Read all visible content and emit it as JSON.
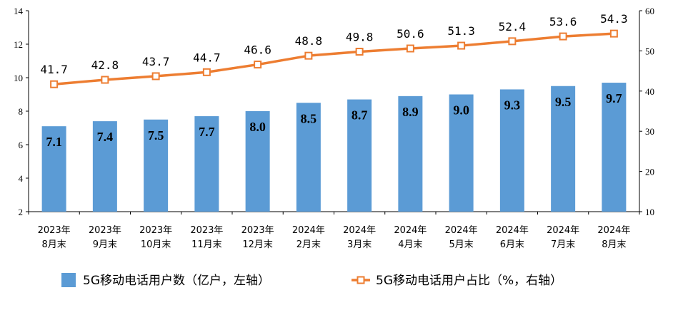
{
  "chart_data": {
    "type": "bar",
    "categories": [
      [
        "2023年",
        "8月末"
      ],
      [
        "2023年",
        "9月末"
      ],
      [
        "2023年",
        "10月末"
      ],
      [
        "2023年",
        "11月末"
      ],
      [
        "2023年",
        "12月末"
      ],
      [
        "2024年",
        "2月末"
      ],
      [
        "2024年",
        "3月末"
      ],
      [
        "2024年",
        "4月末"
      ],
      [
        "2024年",
        "5月末"
      ],
      [
        "2024年",
        "6月末"
      ],
      [
        "2024年",
        "7月末"
      ],
      [
        "2024年",
        "8月末"
      ]
    ],
    "series": [
      {
        "name": "5G移动电话用户数（亿户，左轴）",
        "type": "bar",
        "axis": "left",
        "color": "#5B9BD5",
        "values": [
          7.1,
          7.4,
          7.5,
          7.7,
          8.0,
          8.5,
          8.7,
          8.9,
          9.0,
          9.3,
          9.5,
          9.7
        ],
        "labels": [
          "7.1",
          "7.4",
          "7.5",
          "7.7",
          "8.0",
          "8.5",
          "8.7",
          "8.9",
          "9.0",
          "9.3",
          "9.5",
          "9.7"
        ]
      },
      {
        "name": "5G移动电话用户占比（%，右轴）",
        "type": "line",
        "axis": "right",
        "color": "#ED7D31",
        "values": [
          41.7,
          42.8,
          43.7,
          44.7,
          46.6,
          48.8,
          49.8,
          50.6,
          51.3,
          52.4,
          53.6,
          54.3
        ],
        "labels": [
          "41.7",
          "42.8",
          "43.7",
          "44.7",
          "46.6",
          "48.8",
          "49.8",
          "50.6",
          "51.3",
          "52.4",
          "53.6",
          "54.3"
        ]
      }
    ],
    "y_left": {
      "range": [
        2,
        14
      ],
      "ticks": [
        "2",
        "4",
        "6",
        "8",
        "10",
        "12",
        "14"
      ]
    },
    "y_right": {
      "range": [
        10,
        60
      ],
      "ticks": [
        "10",
        "20",
        "30",
        "40",
        "50",
        "60"
      ]
    },
    "grid": false,
    "legend_position": "bottom"
  }
}
